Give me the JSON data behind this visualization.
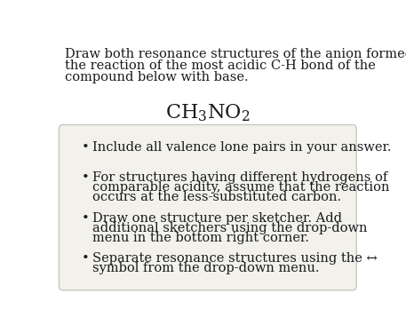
{
  "title_lines": [
    "Draw both resonance structures of the anion formed by",
    "the reaction of the most acidic C-H bond of the",
    "compound below with base."
  ],
  "bullet_points": [
    [
      "Include all valence lone pairs in your answer."
    ],
    [
      "For structures having different hydrogens of",
      "comparable acidity, assume that the reaction",
      "occurs at the less-substituted carbon."
    ],
    [
      "Draw one structure per sketcher. Add",
      "additional sketchers using the drop-down",
      "menu in the bottom right corner."
    ],
    [
      "Separate resonance structures using the ↔",
      "symbol from the drop-down menu."
    ]
  ],
  "bg_color": "#ffffff",
  "box_bg_color": "#f2f1ec",
  "box_border_color": "#c8c8c0",
  "text_color": "#1a1a1a",
  "title_fontsize": 10.5,
  "compound_fontsize": 15,
  "bullet_fontsize": 10.5
}
